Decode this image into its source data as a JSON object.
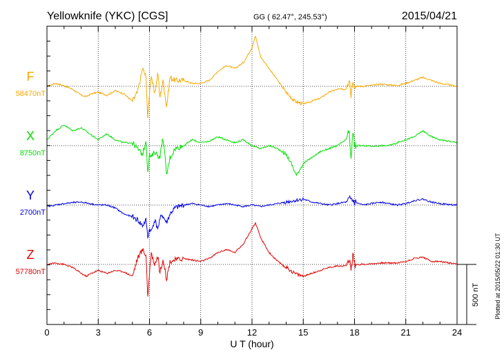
{
  "chart_data": {
    "type": "line",
    "title": "Yellowknife (YKC)  [CGS]",
    "coords": "GG ( 62.47°, 245.53°)",
    "date": "2015/04/21",
    "xlabel": "U T (hour)",
    "xlim": [
      0,
      24
    ],
    "xticks": [
      "0",
      "3",
      "6",
      "9",
      "12",
      "15",
      "18",
      "21",
      "24"
    ],
    "scale_bar": "500 nT",
    "plotted_note": "Plotted at 2015/05/22 01:30 UT",
    "grid": true,
    "series": [
      {
        "name": "F",
        "baseline": "58470nT",
        "color": "#f5a800",
        "x": [
          0,
          0.5,
          1,
          1.5,
          2,
          2.3,
          2.6,
          3,
          3.5,
          4,
          4.5,
          5,
          5.3,
          5.6,
          5.8,
          5.9,
          6,
          6.1,
          6.3,
          6.5,
          6.6,
          6.8,
          7,
          7.2,
          7.5,
          8,
          8.5,
          9,
          9.5,
          10,
          10.5,
          11,
          11.5,
          12,
          12.2,
          12.5,
          13,
          13.5,
          14,
          14.5,
          15,
          15.5,
          16,
          16.5,
          17,
          17.5,
          17.7,
          17.8,
          17.9,
          18,
          18.5,
          19,
          19.5,
          20,
          20.5,
          21,
          21.5,
          22,
          22.5,
          23,
          23.5,
          24
        ],
        "y": [
          0.0,
          0.1,
          0.02,
          -0.1,
          -0.3,
          -0.35,
          -0.25,
          -0.2,
          -0.3,
          -0.15,
          -0.25,
          -0.5,
          -0.2,
          0.6,
          0.3,
          -1.1,
          -0.2,
          0.4,
          -0.3,
          0.5,
          -0.4,
          0.2,
          -0.7,
          0.3,
          0.2,
          0.2,
          0.1,
          0.1,
          0.2,
          0.5,
          0.7,
          0.6,
          0.8,
          1.3,
          1.7,
          1.0,
          0.6,
          0.2,
          -0.2,
          -0.5,
          -0.6,
          -0.5,
          -0.4,
          -0.2,
          -0.1,
          -0.1,
          0.3,
          -0.3,
          0.3,
          0.0,
          0.0,
          0.03,
          0.07,
          0.05,
          0.03,
          0.1,
          0.2,
          0.3,
          0.2,
          0.1,
          0.05,
          0.0
        ]
      },
      {
        "name": "X",
        "baseline": "8750nT",
        "color": "#00e000",
        "x": [
          0,
          0.5,
          1,
          1.5,
          2,
          3,
          3.5,
          4,
          4.5,
          5,
          5.3,
          5.6,
          5.8,
          5.9,
          6,
          6.1,
          6.3,
          6.6,
          6.8,
          7,
          7.2,
          7.5,
          8,
          8.5,
          9,
          9.5,
          10,
          10.5,
          11,
          11.5,
          12,
          12.5,
          13,
          13.5,
          14,
          14.3,
          14.6,
          15,
          15.5,
          16,
          16.5,
          17,
          17.5,
          17.7,
          17.8,
          17.9,
          18,
          18.5,
          19,
          19.5,
          20,
          20.5,
          21,
          21.5,
          22,
          22.5,
          23,
          23.5,
          24
        ],
        "y": [
          0.2,
          0.5,
          0.7,
          0.5,
          0.6,
          0.2,
          0.4,
          0.2,
          0.1,
          0.1,
          -0.1,
          -0.3,
          0.2,
          -0.9,
          -0.3,
          -0.4,
          -0.2,
          -0.4,
          0.3,
          -1.0,
          -0.4,
          -0.1,
          0.0,
          0.2,
          0.1,
          0.15,
          0.3,
          0.2,
          0.1,
          0.2,
          0.0,
          -0.1,
          0.0,
          -0.1,
          -0.3,
          -0.6,
          -1.0,
          -0.6,
          -0.4,
          -0.2,
          -0.1,
          0.0,
          0.2,
          0.5,
          -0.6,
          0.5,
          0.0,
          0.0,
          -0.02,
          0.0,
          0.0,
          0.1,
          0.2,
          0.3,
          0.5,
          0.3,
          0.2,
          0.15,
          0.1
        ]
      },
      {
        "name": "Y",
        "baseline": "2700nT",
        "color": "#0000e0",
        "x": [
          0,
          0.5,
          1,
          1.5,
          2,
          2.5,
          3,
          3.5,
          4,
          4.5,
          5,
          5.3,
          5.6,
          5.8,
          5.9,
          6,
          6.1,
          6.3,
          6.5,
          6.7,
          7,
          7.2,
          7.5,
          8,
          8.5,
          9,
          9.5,
          10,
          10.5,
          11,
          11.5,
          12,
          12.5,
          13,
          13.5,
          14,
          14.5,
          15,
          15.5,
          16,
          16.5,
          17,
          17.5,
          17.8,
          18,
          18.5,
          19,
          19.5,
          20,
          20.5,
          21,
          21.5,
          22,
          22.5,
          23,
          23.5,
          24
        ],
        "y": [
          -0.05,
          0.0,
          0.05,
          0.08,
          0.1,
          0.05,
          0.0,
          0.0,
          -0.1,
          -0.3,
          -0.4,
          -0.5,
          -0.7,
          -0.5,
          -1.1,
          -0.8,
          -0.9,
          -0.5,
          -0.8,
          -0.3,
          -0.6,
          -0.3,
          -0.1,
          0.0,
          0.05,
          0.0,
          -0.05,
          0.0,
          0.05,
          0.0,
          -0.05,
          0.0,
          -0.05,
          0.0,
          0.05,
          0.1,
          0.15,
          0.2,
          0.1,
          0.05,
          0.0,
          0.05,
          0.1,
          0.2,
          0.1,
          0.0,
          0.05,
          0.1,
          0.05,
          0.0,
          0.05,
          0.15,
          0.2,
          0.1,
          0.05,
          0.02,
          0.0
        ]
      },
      {
        "name": "Z",
        "baseline": "57780nT",
        "color": "#e00000",
        "x": [
          0,
          0.5,
          1,
          1.5,
          2,
          2.3,
          2.6,
          3,
          3.5,
          4,
          4.5,
          5,
          5.3,
          5.6,
          5.8,
          5.9,
          6,
          6.1,
          6.3,
          6.5,
          6.6,
          6.8,
          7,
          7.2,
          7.5,
          8,
          8.5,
          9,
          9.5,
          10,
          10.5,
          11,
          11.5,
          12,
          12.2,
          12.5,
          13,
          13.5,
          14,
          14.5,
          15,
          15.5,
          16,
          16.5,
          17,
          17.5,
          17.7,
          17.8,
          17.9,
          18,
          18.5,
          19,
          19.5,
          20,
          20.5,
          21,
          21.5,
          22,
          22.5,
          23,
          23.5,
          24
        ],
        "y": [
          0.0,
          0.05,
          0.0,
          -0.1,
          -0.3,
          -0.4,
          -0.3,
          -0.2,
          -0.3,
          -0.2,
          -0.25,
          -0.4,
          0.2,
          0.5,
          0.3,
          -1.1,
          -0.3,
          0.4,
          0.0,
          0.3,
          -0.3,
          0.2,
          -0.5,
          0.1,
          0.15,
          0.2,
          0.15,
          0.1,
          0.2,
          0.4,
          0.5,
          0.4,
          0.7,
          1.2,
          1.4,
          0.9,
          0.4,
          0.1,
          -0.1,
          -0.3,
          -0.4,
          -0.3,
          -0.2,
          -0.1,
          -0.05,
          -0.05,
          0.2,
          -0.2,
          0.3,
          0.0,
          0.0,
          0.02,
          0.05,
          0.05,
          0.05,
          0.1,
          0.2,
          0.25,
          0.1,
          0.1,
          0.05,
          0.0
        ]
      }
    ]
  }
}
